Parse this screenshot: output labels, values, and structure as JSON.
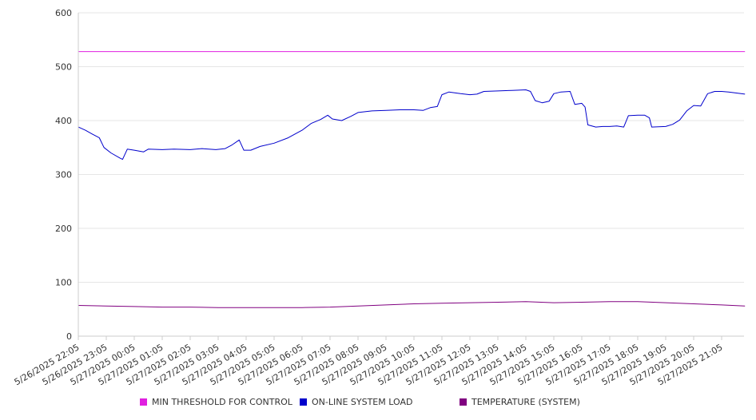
{
  "chart_data": {
    "type": "line",
    "ylim": [
      0,
      600
    ],
    "y_ticks": [
      "0",
      "100",
      "200",
      "300",
      "400",
      "500",
      "600"
    ],
    "x_ticks": [
      "5/26/2025 22:05",
      "5/26/2025 23:05",
      "5/27/2025 00:05",
      "5/27/2025 01:05",
      "5/27/2025 02:05",
      "5/27/2025 03:05",
      "5/27/2025 04:05",
      "5/27/2025 05:05",
      "5/27/2025 06:05",
      "5/27/2025 07:05",
      "5/27/2025 08:05",
      "5/27/2025 09:05",
      "5/27/2025 10:05",
      "5/27/2025 11:05",
      "5/27/2025 12:05",
      "5/27/2025 13:05",
      "5/27/2025 14:05",
      "5/27/2025 15:05",
      "5/27/2025 16:05",
      "5/27/2025 17:05",
      "5/27/2025 18:05",
      "5/27/2025 19:05",
      "5/27/2025 20:05",
      "5/27/2025 21:05"
    ],
    "grid": "horizontal",
    "legend_position": "bottom",
    "series": [
      {
        "name": "MIN THRESHOLD FOR CONTROL",
        "color": "#e020e0",
        "points": [
          [
            "5/26/2025 22:05",
            528
          ],
          [
            "5/27/2025 21:55",
            528
          ]
        ]
      },
      {
        "name": "ON-LINE SYSTEM LOAD",
        "color": "#0000cc",
        "points": [
          [
            "5/26/2025 22:05",
            388
          ],
          [
            "5/26/2025 22:20",
            382
          ],
          [
            "5/26/2025 22:35",
            375
          ],
          [
            "5/26/2025 22:50",
            368
          ],
          [
            "5/26/2025 23:00",
            350
          ],
          [
            "5/26/2025 23:15",
            340
          ],
          [
            "5/26/2025 23:35",
            330
          ],
          [
            "5/26/2025 23:40",
            328
          ],
          [
            "5/26/2025 23:50",
            347
          ],
          [
            "5/27/2025 00:05",
            345
          ],
          [
            "5/27/2025 00:25",
            342
          ],
          [
            "5/27/2025 00:35",
            347
          ],
          [
            "5/27/2025 01:05",
            346
          ],
          [
            "5/27/2025 01:30",
            347
          ],
          [
            "5/27/2025 02:05",
            346
          ],
          [
            "5/27/2025 02:30",
            348
          ],
          [
            "5/27/2025 03:00",
            346
          ],
          [
            "5/27/2025 03:20",
            348
          ],
          [
            "5/27/2025 03:35",
            355
          ],
          [
            "5/27/2025 03:50",
            364
          ],
          [
            "5/27/2025 04:00",
            345
          ],
          [
            "5/27/2025 04:15",
            345
          ],
          [
            "5/27/2025 04:35",
            352
          ],
          [
            "5/27/2025 05:05",
            358
          ],
          [
            "5/27/2025 05:35",
            368
          ],
          [
            "5/27/2025 06:05",
            382
          ],
          [
            "5/27/2025 06:25",
            395
          ],
          [
            "5/27/2025 06:45",
            402
          ],
          [
            "5/27/2025 07:00",
            410
          ],
          [
            "5/27/2025 07:10",
            403
          ],
          [
            "5/27/2025 07:30",
            400
          ],
          [
            "5/27/2025 07:50",
            408
          ],
          [
            "5/27/2025 08:05",
            415
          ],
          [
            "5/27/2025 08:35",
            418
          ],
          [
            "5/27/2025 09:05",
            419
          ],
          [
            "5/27/2025 09:35",
            420
          ],
          [
            "5/27/2025 10:05",
            420
          ],
          [
            "5/27/2025 10:25",
            419
          ],
          [
            "5/27/2025 10:40",
            424
          ],
          [
            "5/27/2025 10:55",
            426
          ],
          [
            "5/27/2025 11:05",
            448
          ],
          [
            "5/27/2025 11:20",
            453
          ],
          [
            "5/27/2025 11:45",
            450
          ],
          [
            "5/27/2025 12:05",
            448
          ],
          [
            "5/27/2025 12:20",
            449
          ],
          [
            "5/27/2025 12:35",
            454
          ],
          [
            "5/27/2025 13:05",
            455
          ],
          [
            "5/27/2025 13:35",
            456
          ],
          [
            "5/27/2025 14:05",
            457
          ],
          [
            "5/27/2025 14:15",
            454
          ],
          [
            "5/27/2025 14:25",
            437
          ],
          [
            "5/27/2025 14:40",
            433
          ],
          [
            "5/27/2025 14:55",
            436
          ],
          [
            "5/27/2025 15:05",
            450
          ],
          [
            "5/27/2025 15:20",
            453
          ],
          [
            "5/27/2025 15:40",
            454
          ],
          [
            "5/27/2025 15:50",
            430
          ],
          [
            "5/27/2025 16:05",
            432
          ],
          [
            "5/27/2025 16:12",
            425
          ],
          [
            "5/27/2025 16:18",
            392
          ],
          [
            "5/27/2025 16:35",
            388
          ],
          [
            "5/27/2025 16:50",
            389
          ],
          [
            "5/27/2025 17:05",
            389
          ],
          [
            "5/27/2025 17:20",
            390
          ],
          [
            "5/27/2025 17:35",
            388
          ],
          [
            "5/27/2025 17:45",
            409
          ],
          [
            "5/27/2025 18:05",
            410
          ],
          [
            "5/27/2025 18:20",
            410
          ],
          [
            "5/27/2025 18:30",
            405
          ],
          [
            "5/27/2025 18:35",
            388
          ],
          [
            "5/27/2025 19:05",
            389
          ],
          [
            "5/27/2025 19:20",
            393
          ],
          [
            "5/27/2025 19:35",
            401
          ],
          [
            "5/27/2025 19:50",
            418
          ],
          [
            "5/27/2025 20:05",
            428
          ],
          [
            "5/27/2025 20:20",
            427
          ],
          [
            "5/27/2025 20:35",
            450
          ],
          [
            "5/27/2025 20:50",
            454
          ],
          [
            "5/27/2025 21:05",
            454
          ],
          [
            "5/27/2025 21:20",
            453
          ],
          [
            "5/27/2025 21:55",
            449
          ]
        ]
      },
      {
        "name": "TEMPERATURE (SYSTEM)",
        "color": "#800080",
        "points": [
          [
            "5/26/2025 22:05",
            57
          ],
          [
            "5/26/2025 23:05",
            56
          ],
          [
            "5/27/2025 00:05",
            55
          ],
          [
            "5/27/2025 01:05",
            54
          ],
          [
            "5/27/2025 02:05",
            54
          ],
          [
            "5/27/2025 03:05",
            53
          ],
          [
            "5/27/2025 04:05",
            53
          ],
          [
            "5/27/2025 05:05",
            53
          ],
          [
            "5/27/2025 06:05",
            53
          ],
          [
            "5/27/2025 07:05",
            54
          ],
          [
            "5/27/2025 08:05",
            56
          ],
          [
            "5/27/2025 09:05",
            58
          ],
          [
            "5/27/2025 10:05",
            60
          ],
          [
            "5/27/2025 11:05",
            61
          ],
          [
            "5/27/2025 12:05",
            62
          ],
          [
            "5/27/2025 13:05",
            63
          ],
          [
            "5/27/2025 14:05",
            64
          ],
          [
            "5/27/2025 15:05",
            62
          ],
          [
            "5/27/2025 16:05",
            63
          ],
          [
            "5/27/2025 17:05",
            64
          ],
          [
            "5/27/2025 18:05",
            64
          ],
          [
            "5/27/2025 19:05",
            62
          ],
          [
            "5/27/2025 20:05",
            60
          ],
          [
            "5/27/2025 21:05",
            58
          ],
          [
            "5/27/2025 21:55",
            56
          ]
        ]
      }
    ]
  }
}
